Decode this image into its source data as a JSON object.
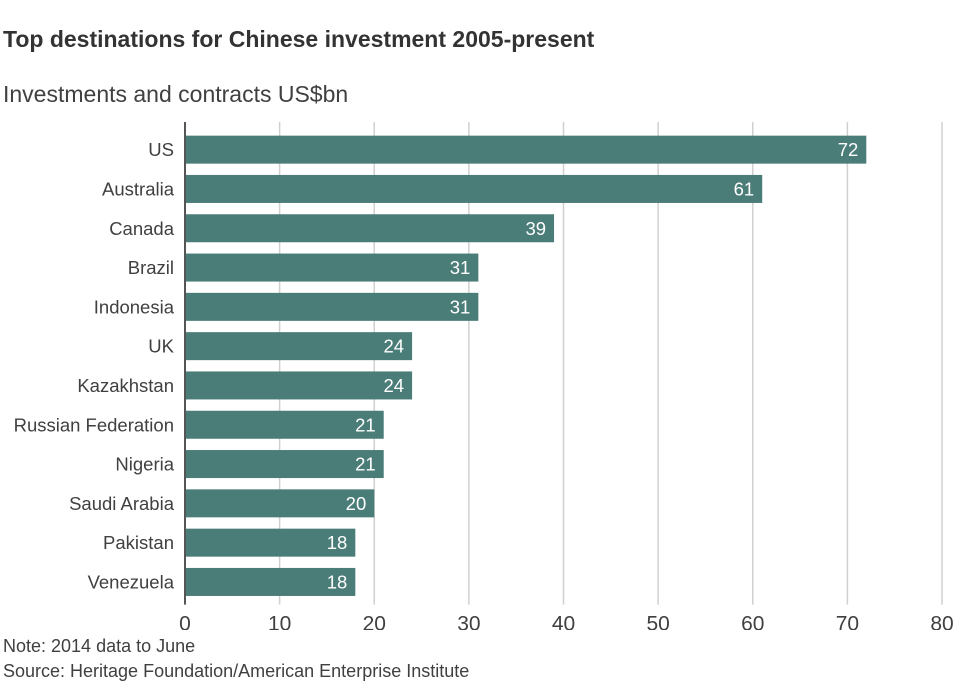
{
  "header": {
    "title": "Top destinations for Chinese investment 2005-present",
    "subtitle": "Investments and contracts US$bn"
  },
  "footer": {
    "note": "Note: 2014 data to June",
    "source": "Source: Heritage Foundation/American Enterprise Institute"
  },
  "chart_data": {
    "type": "bar",
    "orientation": "horizontal",
    "title": "Top destinations for Chinese investment 2005-present",
    "subtitle": "Investments and contracts US$bn",
    "categories": [
      "US",
      "Australia",
      "Canada",
      "Brazil",
      "Indonesia",
      "UK",
      "Kazakhstan",
      "Russian Federation",
      "Nigeria",
      "Saudi Arabia",
      "Pakistan",
      "Venezuela"
    ],
    "values": [
      72,
      61,
      39,
      31,
      31,
      24,
      24,
      21,
      21,
      20,
      18,
      18
    ],
    "xlim": [
      0,
      80
    ],
    "xticks": [
      0,
      10,
      20,
      30,
      40,
      50,
      60,
      70,
      80
    ],
    "grid": true,
    "legend": "none",
    "bar_color": "#4a7c78",
    "label_color": "#ffffff",
    "grid_color": "#d0d0d0",
    "axis_color": "#555555"
  }
}
